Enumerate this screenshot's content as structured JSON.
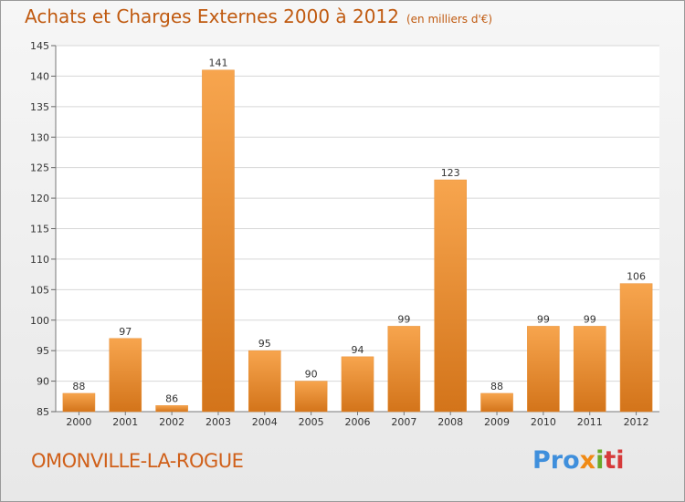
{
  "header": {
    "title": "Achats et Charges Externes 2000 à 2012",
    "unit": "(en milliers d'€)"
  },
  "footer": {
    "town": "OMONVILLE-LA-ROGUE",
    "logo": [
      "Pro",
      "x",
      "i",
      "ti"
    ]
  },
  "colors": {
    "bar_light": "#f7a54e",
    "bar_dark": "#d3741a",
    "title": "#c05a10",
    "grid": "#d7d7d7"
  },
  "chart_data": {
    "type": "bar",
    "categories": [
      "2000",
      "2001",
      "2002",
      "2003",
      "2004",
      "2005",
      "2006",
      "2007",
      "2008",
      "2009",
      "2010",
      "2011",
      "2012"
    ],
    "values": [
      88,
      97,
      86,
      141,
      95,
      90,
      94,
      99,
      123,
      88,
      99,
      99,
      106
    ],
    "title": "Achats et Charges Externes 2000 à 2012",
    "subtitle": "(en milliers d'€)",
    "ylim": [
      85,
      145
    ],
    "yticks": [
      85,
      90,
      95,
      100,
      105,
      110,
      115,
      120,
      125,
      130,
      135,
      140,
      145
    ],
    "grid": true,
    "legend": "none"
  }
}
